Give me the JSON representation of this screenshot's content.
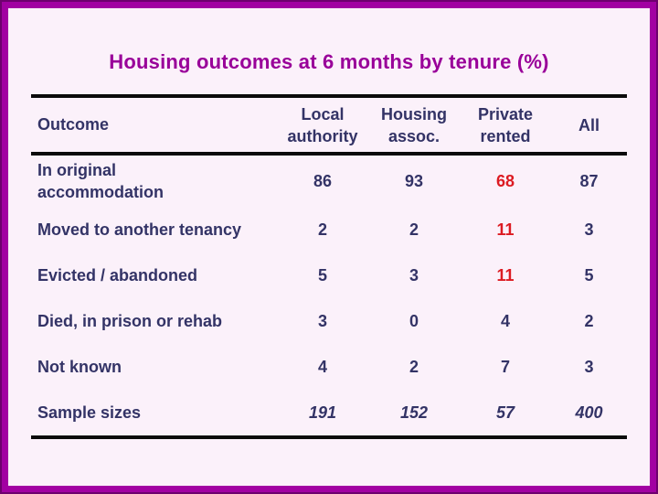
{
  "slide": {
    "title": "Housing outcomes at 6 months by tenure (%)",
    "colors": {
      "border_magenta": "#A201A2",
      "border_outer_dark": "#6E016E",
      "background": "#FBF1FA",
      "title_magenta": "#990099",
      "text_navy": "#333366",
      "highlight_red": "#DC1B22",
      "rule_black": "#0B0B0B"
    }
  },
  "table": {
    "header": {
      "outcome_label": "Outcome",
      "columns": [
        {
          "line1": "Local",
          "line2": "authority"
        },
        {
          "line1": "Housing",
          "line2": "assoc."
        },
        {
          "line1": "Private",
          "line2": "rented"
        },
        {
          "line1": "All",
          "line2": ""
        }
      ]
    },
    "rows": [
      {
        "label_line1": "In original",
        "label_line2": "accommodation",
        "values": [
          "86",
          "93",
          "68",
          "87"
        ]
      },
      {
        "label_line1": "Moved to another tenancy",
        "label_line2": "",
        "values": [
          "2",
          "2",
          "11",
          "3"
        ]
      },
      {
        "label_line1": "Evicted / abandoned",
        "label_line2": "",
        "values": [
          "5",
          "3",
          "11",
          "5"
        ]
      },
      {
        "label_line1": "Died, in prison or rehab",
        "label_line2": "",
        "values": [
          "3",
          "0",
          "4",
          "2"
        ]
      },
      {
        "label_line1": "Not known",
        "label_line2": "",
        "values": [
          "4",
          "2",
          "7",
          "3"
        ]
      },
      {
        "label_line1": "Sample sizes",
        "label_line2": "",
        "values": [
          "191",
          "152",
          "57",
          "400"
        ]
      }
    ]
  }
}
